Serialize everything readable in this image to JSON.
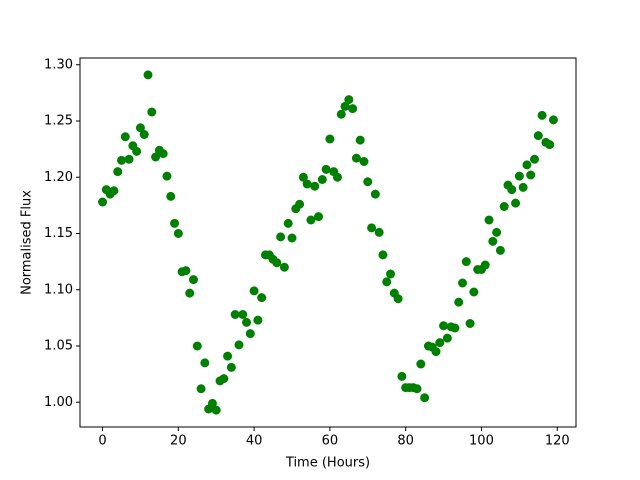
{
  "chart_data": {
    "type": "scatter",
    "xlabel": "Time (Hours)",
    "ylabel": "Normalised Flux",
    "color": "#008000",
    "x": [
      0,
      1,
      2,
      3,
      4,
      5,
      6,
      7,
      8,
      9,
      10,
      11,
      12,
      13,
      14,
      15,
      16,
      17,
      18,
      19,
      20,
      21,
      22,
      23,
      24,
      25,
      26,
      27,
      28,
      29,
      30,
      31,
      32,
      33,
      34,
      35,
      36,
      37,
      38,
      39,
      40,
      41,
      42,
      43,
      44,
      45,
      46,
      47,
      48,
      49,
      50,
      51,
      52,
      53,
      54,
      55,
      56,
      57,
      58,
      59,
      60,
      61,
      62,
      63,
      64,
      65,
      66,
      67,
      68,
      69,
      70,
      71,
      72,
      73,
      74,
      75,
      76,
      77,
      78,
      79,
      80,
      81,
      82,
      83,
      84,
      85,
      86,
      87,
      88,
      89,
      90,
      91,
      92,
      93,
      94,
      95,
      96,
      97,
      98,
      99,
      100,
      101,
      102,
      103,
      104,
      105,
      106,
      107,
      108,
      109,
      110,
      111,
      112,
      113,
      114,
      115,
      116,
      117,
      118,
      119
    ],
    "values": [
      1.178,
      1.189,
      1.185,
      1.188,
      1.205,
      1.215,
      1.236,
      1.216,
      1.228,
      1.223,
      1.244,
      1.238,
      1.291,
      1.258,
      1.218,
      1.224,
      1.221,
      1.201,
      1.183,
      1.159,
      1.15,
      1.116,
      1.117,
      1.097,
      1.109,
      1.05,
      1.012,
      1.035,
      0.994,
      0.999,
      0.993,
      1.019,
      1.021,
      1.041,
      1.031,
      1.078,
      1.051,
      1.078,
      1.071,
      1.061,
      1.099,
      1.073,
      1.093,
      1.131,
      1.131,
      1.127,
      1.124,
      1.147,
      1.12,
      1.159,
      1.146,
      1.172,
      1.176,
      1.2,
      1.194,
      1.162,
      1.192,
      1.165,
      1.198,
      1.207,
      1.234,
      1.205,
      1.2,
      1.256,
      1.263,
      1.269,
      1.261,
      1.217,
      1.233,
      1.214,
      1.196,
      1.155,
      1.185,
      1.151,
      1.131,
      1.107,
      1.114,
      1.097,
      1.092,
      1.023,
      1.013,
      1.013,
      1.013,
      1.012,
      1.034,
      1.004,
      1.05,
      1.049,
      1.045,
      1.053,
      1.068,
      1.057,
      1.067,
      1.066,
      1.089,
      1.106,
      1.125,
      1.07,
      1.098,
      1.118,
      1.118,
      1.122,
      1.162,
      1.143,
      1.151,
      1.135,
      1.174,
      1.193,
      1.189,
      1.177,
      1.201,
      1.191,
      1.211,
      1.202,
      1.216,
      1.237,
      1.255,
      1.231,
      1.229,
      1.251
    ],
    "xlim": [
      -5.95,
      124.95
    ],
    "xticks": [
      0,
      20,
      40,
      60,
      80,
      100,
      120
    ],
    "ylim": [
      0.978,
      1.306
    ],
    "yticks": [
      {
        "value": 1.0,
        "label": "1.00"
      },
      {
        "value": 1.05,
        "label": "1.05"
      },
      {
        "value": 1.1,
        "label": "1.10"
      },
      {
        "value": 1.15,
        "label": "1.15"
      },
      {
        "value": 1.2,
        "label": "1.20"
      },
      {
        "value": 1.25,
        "label": "1.25"
      },
      {
        "value": 1.3,
        "label": "1.30"
      }
    ]
  }
}
